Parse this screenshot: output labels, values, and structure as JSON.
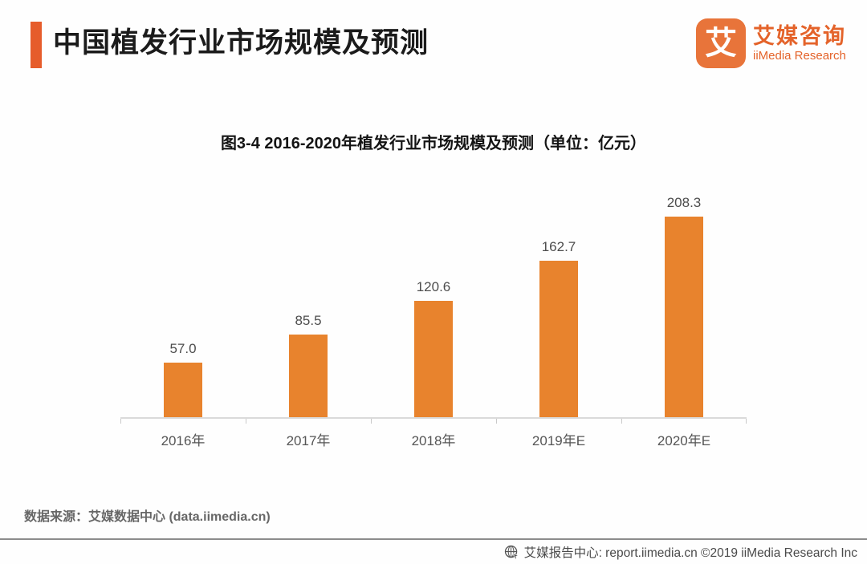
{
  "header": {
    "title": "中国植发行业市场规模及预测",
    "accent_color": "#e65c2b"
  },
  "logo": {
    "glyph": "艾",
    "name_cn": "艾媒咨询",
    "name_en": "iiMedia Research",
    "color": "#e4632a",
    "mark_background": "#e8743a"
  },
  "chart_data": {
    "type": "bar",
    "title": "图3-4  2016-2020年植发行业市场规模及预测（单位：亿元）",
    "unit": "亿元",
    "categories": [
      "2016年",
      "2017年",
      "2018年",
      "2019年E",
      "2020年E"
    ],
    "values": [
      57.0,
      85.5,
      120.6,
      162.7,
      208.3
    ],
    "value_labels": [
      "57.0",
      "85.5",
      "120.6",
      "162.7",
      "208.3"
    ],
    "bar_color": "#e8832d",
    "xlabel": "",
    "ylabel": "",
    "ylim": [
      0,
      230
    ],
    "grid": false,
    "legend": "none",
    "value_labels_position": "above-bars"
  },
  "source_note": "数据来源：艾媒数据中心 (data.iimedia.cn)",
  "footer": {
    "icon": "globe-cursor-icon",
    "text": "艾媒报告中心: report.iimedia.cn ©2019 iiMedia Research Inc"
  }
}
